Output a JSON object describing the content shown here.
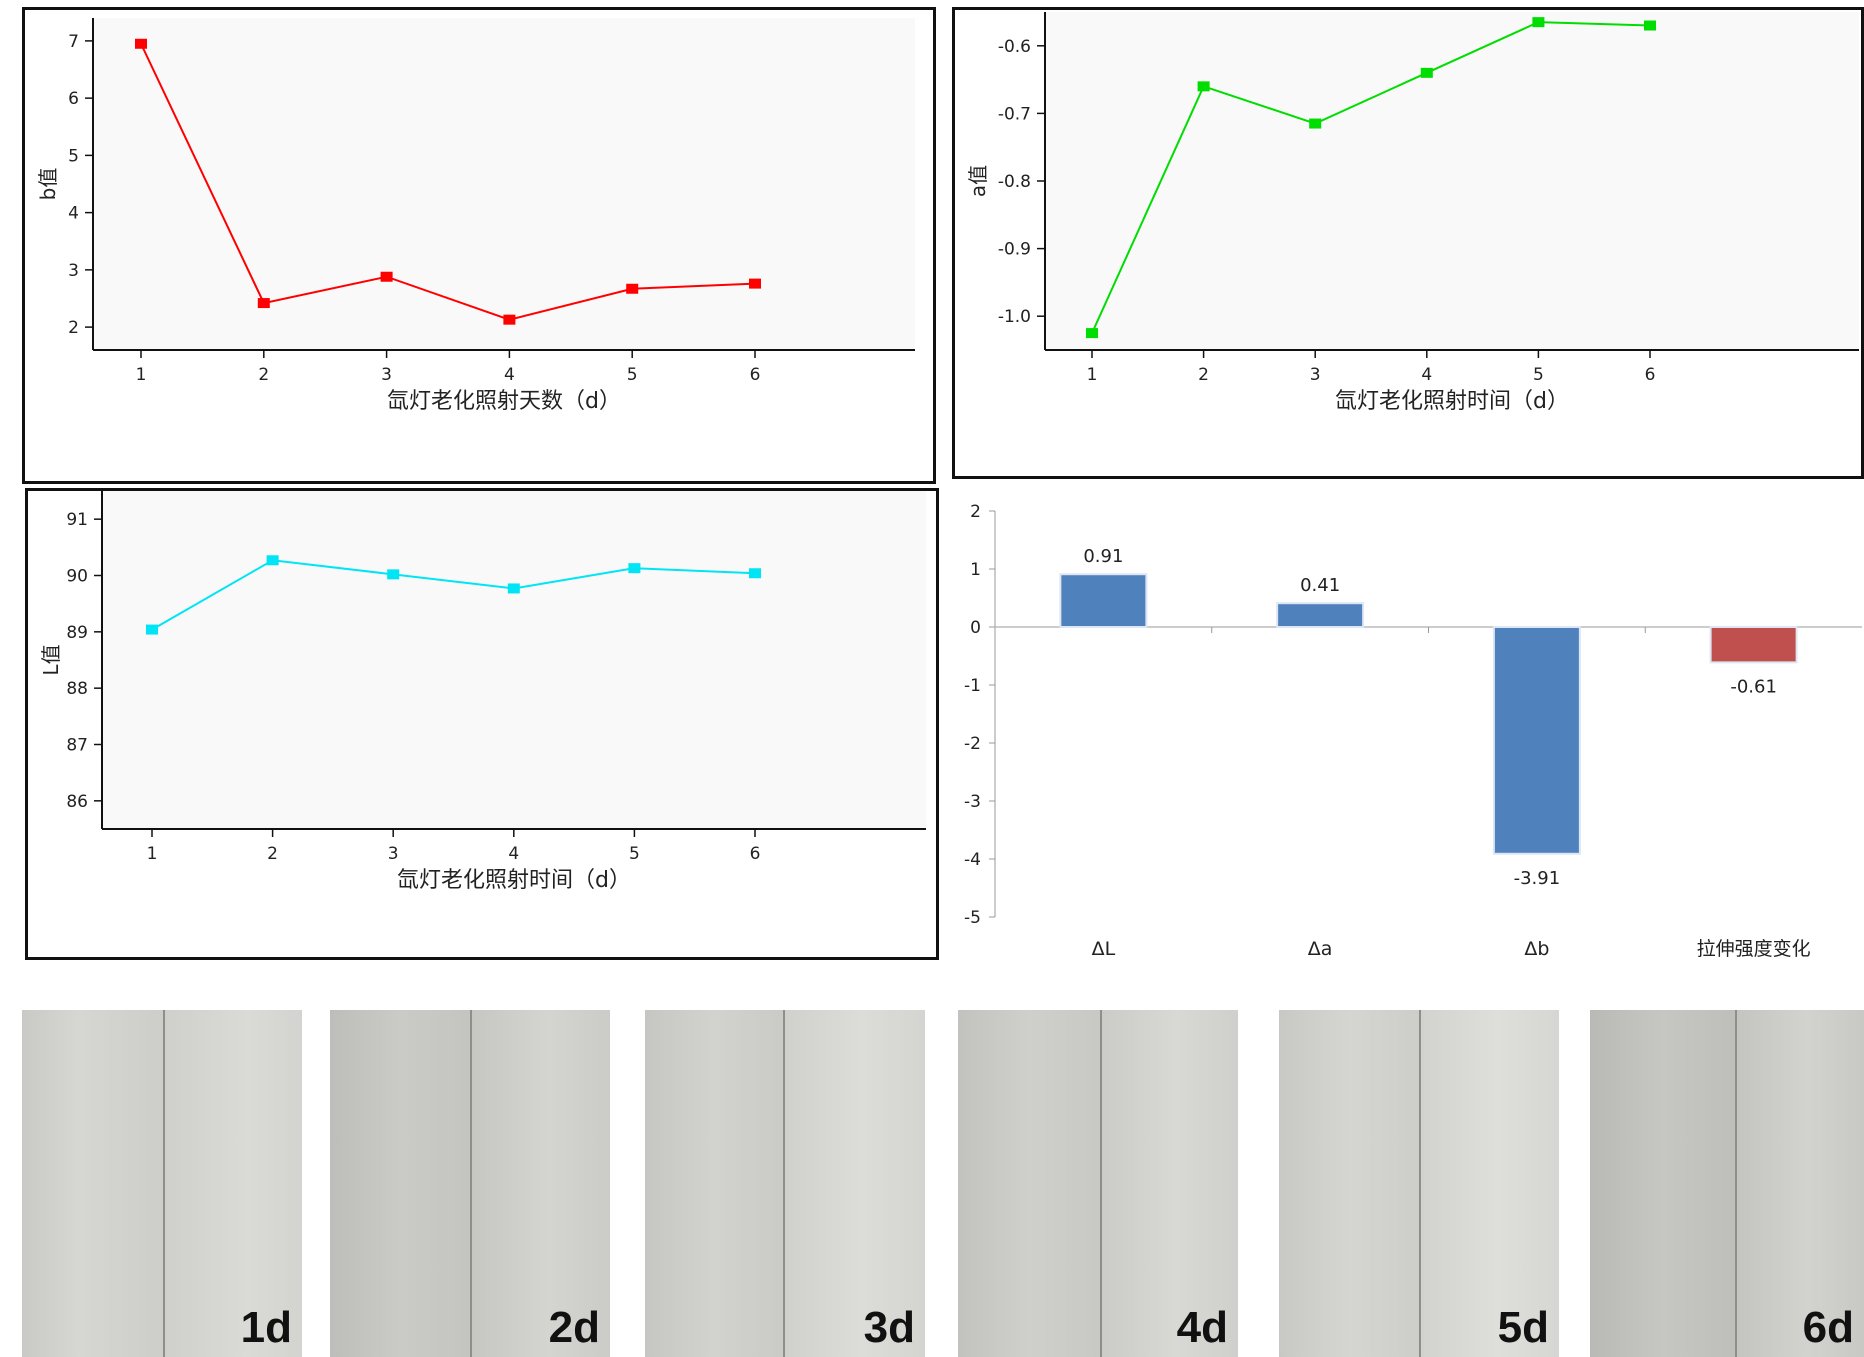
{
  "chart_data": [
    {
      "type": "line",
      "x": [
        1,
        2,
        3,
        4,
        5,
        6
      ],
      "values": [
        6.95,
        2.42,
        2.88,
        2.13,
        2.67,
        2.76
      ],
      "xlabel": "氙灯老化照射天数（d）",
      "ylabel": "b值",
      "ylim": [
        1.6,
        7.4
      ],
      "yticks": [
        "2",
        "3",
        "4",
        "5",
        "6",
        "7"
      ],
      "xticks": [
        "1",
        "2",
        "3",
        "4",
        "5",
        "6"
      ],
      "color": "#ff0000"
    },
    {
      "type": "line",
      "x": [
        1,
        2,
        3,
        4,
        5,
        6
      ],
      "values": [
        -1.025,
        -0.66,
        -0.715,
        -0.64,
        -0.565,
        -0.57
      ],
      "xlabel": "氙灯老化照射时间（d）",
      "ylabel": "a值",
      "ylim": [
        -1.05,
        -0.55
      ],
      "yticks": [
        "-1.0",
        "-0.9",
        "-0.8",
        "-0.7",
        "-0.6"
      ],
      "xticks": [
        "1",
        "2",
        "3",
        "4",
        "5",
        "6"
      ],
      "color": "#00dd00"
    },
    {
      "type": "line",
      "x": [
        1,
        2,
        3,
        4,
        5,
        6
      ],
      "values": [
        89.04,
        90.27,
        90.02,
        89.77,
        90.13,
        90.04
      ],
      "xlabel": "氙灯老化照射时间（d）",
      "ylabel": "L值",
      "ylim": [
        85.5,
        91.5
      ],
      "yticks": [
        "86",
        "87",
        "88",
        "89",
        "90",
        "91"
      ],
      "xticks": [
        "1",
        "2",
        "3",
        "4",
        "5",
        "6"
      ],
      "color": "#00e5f5"
    },
    {
      "type": "bar",
      "categories": [
        "ΔL",
        "Δa",
        "Δb",
        "拉伸强度变化"
      ],
      "values": [
        0.91,
        0.41,
        -3.91,
        -0.61
      ],
      "data_labels": [
        "0.91",
        "0.41",
        "-3.91",
        "-0.61"
      ],
      "colors": [
        "#4f81bd",
        "#4f81bd",
        "#4f81bd",
        "#c0504d"
      ],
      "ylim": [
        -5,
        2
      ],
      "yticks": [
        "2",
        "1",
        "0",
        "-1",
        "-2",
        "-3",
        "-4",
        "-5"
      ]
    }
  ],
  "photos": {
    "labels": [
      "1d",
      "2d",
      "3d",
      "4d",
      "5d",
      "6d"
    ]
  }
}
